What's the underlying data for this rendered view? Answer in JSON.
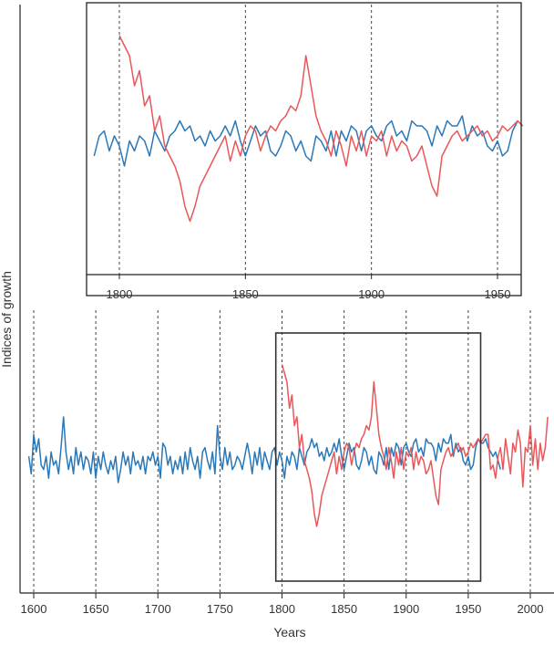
{
  "chart_data": {
    "type": "line",
    "xlabel": "Years",
    "ylabel": "Indices of growth",
    "colors": {
      "blue": "#2a78b8",
      "red": "#e8575a",
      "axis": "#222222",
      "grid": "#444444"
    },
    "main": {
      "xlim": [
        1595,
        2015
      ],
      "ticks": [
        1600,
        1650,
        1700,
        1750,
        1800,
        1850,
        1900,
        1950,
        2000
      ],
      "tick_labels": [
        "1600",
        "1650",
        "1700",
        "1750",
        "1800",
        "1850",
        "1900",
        "1950",
        "2000"
      ],
      "highlight_range": [
        1795,
        1960
      ]
    },
    "inset": {
      "xlim": [
        1790,
        1960
      ],
      "ticks": [
        1800,
        1850,
        1900,
        1950
      ],
      "tick_labels": [
        "1800",
        "1850",
        "1900",
        "1950"
      ]
    },
    "series": [
      {
        "name": "blue",
        "x_start": 1596,
        "step": 2,
        "values": [
          0.1,
          -0.3,
          0.6,
          0.2,
          0.5,
          -0.1,
          -0.2,
          0.1,
          -0.4,
          0.2,
          -0.1,
          0.0,
          -0.3,
          0.3,
          1.0,
          0.2,
          -0.2,
          0.1,
          -0.3,
          0.3,
          -0.1,
          0.2,
          -0.2,
          0.1,
          0.0,
          -0.3,
          0.2,
          -0.4,
          0.1,
          -0.2,
          0.2,
          -0.1,
          -0.3,
          0.0,
          -0.2,
          0.1,
          -0.5,
          -0.2,
          0.2,
          -0.1,
          0.1,
          -0.3,
          0.2,
          -0.1,
          0.0,
          -0.2,
          0.1,
          -0.3,
          0.1,
          0.0,
          0.2,
          -0.1,
          0.1,
          -0.4,
          0.4,
          0.3,
          -0.1,
          0.1,
          -0.3,
          0.0,
          -0.2,
          0.1,
          -0.3,
          0.2,
          -0.2,
          0.3,
          0.0,
          -0.2,
          0.1,
          -0.4,
          0.2,
          0.3,
          0.0,
          -0.2,
          0.2,
          -0.3,
          0.8,
          0.1,
          -0.2,
          0.3,
          -0.1,
          0.2,
          -0.2,
          -0.1,
          0.1,
          0.0,
          -0.2,
          0.1,
          0.4,
          0.1,
          -0.3,
          0.2,
          -0.1,
          0.3,
          -0.2,
          0.2,
          0.0,
          -0.2,
          0.2,
          0.3,
          -0.1,
          0.2,
          0.0,
          -0.4,
          0.1,
          -0.1,
          0.2,
          0.1,
          -0.2,
          0.3,
          0.1,
          -0.1,
          0.2,
          0.3,
          0.5,
          0.3,
          0.4,
          0.1,
          0.2,
          0.0,
          0.3,
          0.1,
          0.2,
          0.4,
          0.2,
          0.5,
          0.1,
          -0.2,
          0.1,
          0.4,
          0.2,
          0.3,
          -0.1,
          -0.2,
          0.0,
          0.3,
          0.2,
          -0.1,
          0.1,
          -0.2,
          -0.3,
          0.2,
          0.1,
          -0.1,
          0.3,
          -0.2,
          0.3,
          0.1,
          0.4,
          0.3,
          -0.1,
          0.3,
          0.4,
          0.2,
          0.1,
          0.4,
          0.5,
          0.2,
          0.3,
          0.1,
          0.5,
          0.4,
          0.4,
          0.3,
          0.0,
          0.4,
          0.2,
          0.5,
          0.4,
          0.4,
          0.6,
          0.1,
          0.4,
          0.2,
          0.3,
          0.0,
          -0.1,
          0.1,
          -0.2,
          -0.1,
          0.3,
          0.5,
          0.4,
          0.4,
          0.5,
          0.3,
          0.2,
          0.1,
          0.2,
          0.0,
          -0.2
        ]
      },
      {
        "name": "red",
        "x_start": 1800,
        "step": 2,
        "values": [
          2.2,
          2.0,
          1.8,
          1.2,
          1.5,
          0.8,
          1.0,
          0.3,
          0.6,
          0.0,
          -0.2,
          -0.4,
          -0.7,
          -1.2,
          -1.5,
          -1.2,
          -0.8,
          -0.6,
          -0.4,
          -0.2,
          0.0,
          0.2,
          -0.3,
          0.1,
          -0.2,
          0.2,
          0.4,
          0.3,
          -0.1,
          0.2,
          0.4,
          0.3,
          0.5,
          0.6,
          0.8,
          0.7,
          1.0,
          1.8,
          1.2,
          0.6,
          0.3,
          0.1,
          -0.2,
          0.3,
          0.0,
          -0.4,
          0.2,
          -0.1,
          0.3,
          -0.2,
          0.2,
          0.1,
          0.3,
          -0.2,
          0.2,
          -0.1,
          0.1,
          0.0,
          -0.3,
          -0.2,
          0.0,
          -0.4,
          -0.8,
          -1.0,
          -0.2,
          0.0,
          0.2,
          0.3,
          0.1,
          0.2,
          0.3,
          0.4,
          0.2,
          0.3,
          0.1,
          0.2,
          0.4,
          0.3,
          0.4,
          0.5,
          0.4,
          0.5,
          0.6,
          0.6,
          -0.2,
          -0.1,
          -0.4,
          0.1,
          0.3,
          -0.2,
          0.5,
          0.1,
          -0.3,
          0.4,
          0.2,
          0.7,
          0.4,
          -0.6,
          0.3,
          0.2,
          0.8,
          -0.1,
          0.5,
          -0.2,
          0.4,
          0.0,
          0.3,
          1.0
        ]
      }
    ]
  }
}
